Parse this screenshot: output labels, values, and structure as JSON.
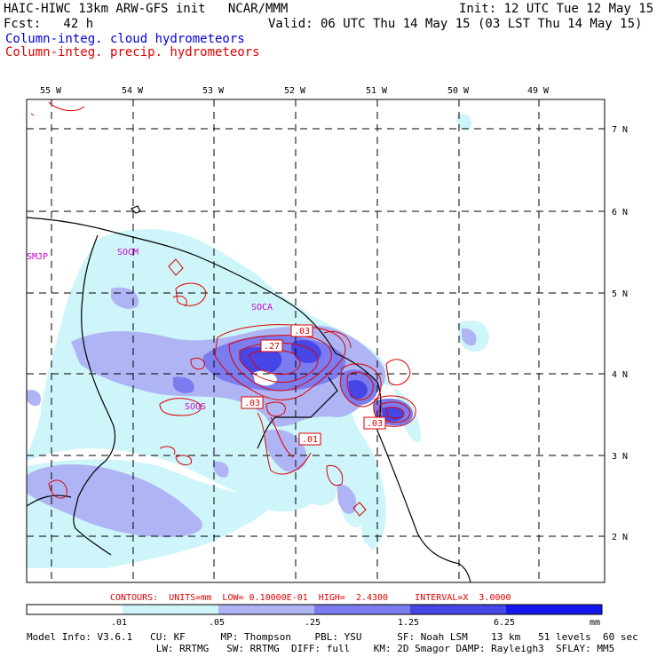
{
  "header": {
    "line1_left": "HAIC-HIWC 13km ARW-GFS init   NCAR/MMM",
    "line1_right": "Init: 12 UTC Tue 12 May 15",
    "line2_left": "Fcst:   42 h",
    "line2_right": "Valid: 06 UTC Thu 14 May 15 (03 LST Thu 14 May 15)",
    "field1": "Column-integ. cloud hydrometeors",
    "field2": "Column-integ. precip. hydrometeors",
    "field1_color": "#0000dd",
    "field2_color": "#dd0000"
  },
  "map": {
    "lon_labels": [
      "55 W",
      "54 W",
      "53 W",
      "52 W",
      "51 W",
      "50 W",
      "49 W"
    ],
    "lat_labels": [
      "7 N",
      "6 N",
      "5 N",
      "4 N",
      "3 N",
      "2 N"
    ],
    "stations": [
      "SMJP",
      "SOCM",
      "SOCA",
      "SOOS"
    ],
    "contour_labels": [
      ".03",
      ".27",
      ".03",
      ".01",
      ".03"
    ]
  },
  "contour_info": "CONTOURS:  UNITS=mm  LOW= 0.10000E-01  HIGH=  2.4300     INTERVAL=X  3.0000",
  "colorbar": {
    "ticks": [
      ".01",
      ".05",
      ".25",
      "1.25",
      "6.25"
    ],
    "units": "mm",
    "colors": [
      "#ffffff",
      "#cdf5fa",
      "#afb5f4",
      "#7b7cef",
      "#4646e6",
      "#1515ee"
    ]
  },
  "footer": {
    "line1": "Model Info: V3.6.1   CU: KF      MP: Thompson    PBL: YSU      SF: Noah LSM    13 km   51 levels  60 sec",
    "line2": "                      LW: RRTMG   SW: RRTMG  DIFF: full    KM: 2D Smagor DAMP: Rayleigh3  SFLAY: MM5"
  }
}
